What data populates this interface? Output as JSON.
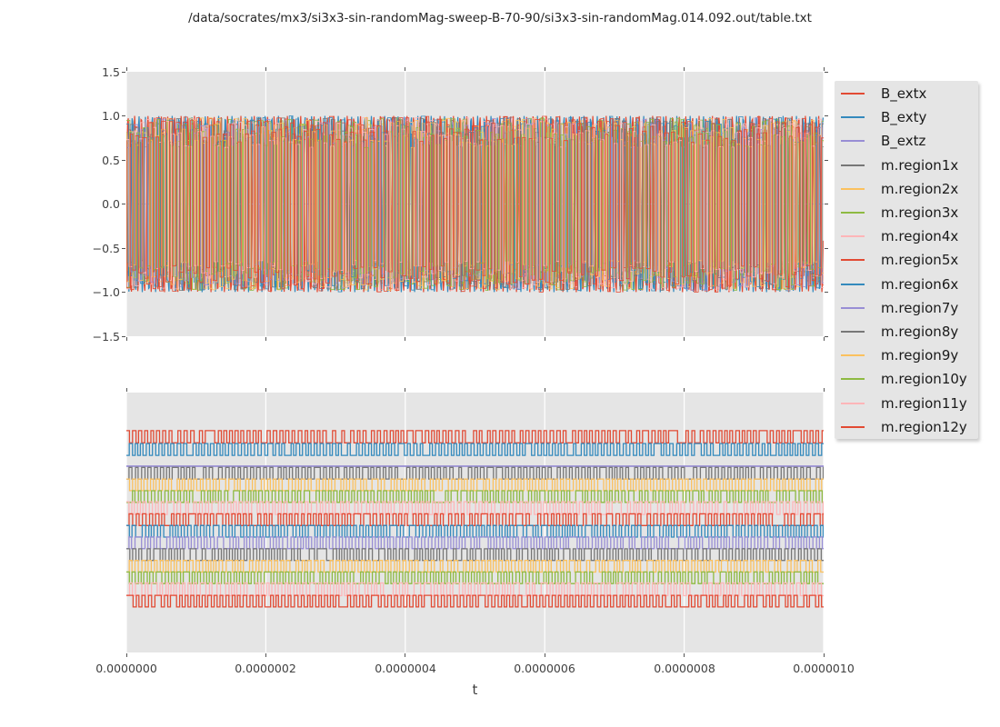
{
  "title": "/data/socrates/mx3/si3x3-sin-randomMag-sweep-B-70-90/si3x3-sin-randomMag.014.092.out/table.txt",
  "xlabel": "t",
  "palette": {
    "red": "#E24A33",
    "blue": "#348ABD",
    "purple": "#988ED5",
    "gray": "#777777",
    "orange": "#FBC15E",
    "green": "#8EBA42",
    "pink": "#FFB5B8",
    "axes_background": "#E5E5E5",
    "grid": "#FFFFFF",
    "tick": "#555555"
  },
  "legend": {
    "items": [
      {
        "label": "B_extx",
        "color": "#E24A33"
      },
      {
        "label": "B_exty",
        "color": "#348ABD"
      },
      {
        "label": "B_extz",
        "color": "#988ED5"
      },
      {
        "label": "m.region1x",
        "color": "#777777"
      },
      {
        "label": "m.region2x",
        "color": "#FBC15E"
      },
      {
        "label": "m.region3x",
        "color": "#8EBA42"
      },
      {
        "label": "m.region4x",
        "color": "#FFB5B8"
      },
      {
        "label": "m.region5x",
        "color": "#E24A33"
      },
      {
        "label": "m.region6x",
        "color": "#348ABD"
      },
      {
        "label": "m.region7y",
        "color": "#988ED5"
      },
      {
        "label": "m.region8y",
        "color": "#777777"
      },
      {
        "label": "m.region9y",
        "color": "#FBC15E"
      },
      {
        "label": "m.region10y",
        "color": "#8EBA42"
      },
      {
        "label": "m.region11y",
        "color": "#FFB5B8"
      },
      {
        "label": "m.region12y",
        "color": "#E24A33"
      }
    ]
  },
  "chart_data": [
    {
      "panel": "top",
      "type": "line",
      "xlim": [
        0,
        1e-06
      ],
      "ylim": [
        -1.5,
        1.5
      ],
      "ytick_values": [
        1.5,
        1.0,
        0.5,
        0.0,
        -0.5,
        -1.0,
        -1.5
      ],
      "ytick_labels": [
        "1.5",
        "1.0",
        "0.5",
        "0.0",
        "−0.5",
        "−1.0",
        "−1.5"
      ],
      "grid": "vertical-white",
      "cycles": 105,
      "seed": 7,
      "series": [
        {
          "name": "B_extx",
          "color": "#E24A33",
          "kind": "sine",
          "amp": 1.0,
          "phase": 0.0
        },
        {
          "name": "B_exty",
          "color": "#348ABD",
          "kind": "sine",
          "amp": 1.0,
          "phase": 2.2
        },
        {
          "name": "B_extz",
          "color": "#988ED5",
          "kind": "flat",
          "value": 0.0
        },
        {
          "name": "m.region1x",
          "color": "#777777",
          "kind": "square",
          "amp_base": 0.64,
          "amp_var": 0.34
        },
        {
          "name": "m.region2x",
          "color": "#FBC15E",
          "kind": "square",
          "amp_base": 0.64,
          "amp_var": 0.34
        },
        {
          "name": "m.region3x",
          "color": "#8EBA42",
          "kind": "square",
          "amp_base": 0.64,
          "amp_var": 0.34
        },
        {
          "name": "m.region4x",
          "color": "#FFB5B8",
          "kind": "square",
          "amp_base": 0.64,
          "amp_var": 0.34
        },
        {
          "name": "m.region5x",
          "color": "#E24A33",
          "kind": "square",
          "amp_base": 0.7,
          "amp_var": 0.3
        },
        {
          "name": "m.region6x",
          "color": "#348ABD",
          "kind": "square",
          "amp_base": 0.7,
          "amp_var": 0.3
        },
        {
          "name": "m.region7y",
          "color": "#988ED5",
          "kind": "square",
          "amp_base": 0.64,
          "amp_var": 0.34
        },
        {
          "name": "m.region8y",
          "color": "#777777",
          "kind": "square",
          "amp_base": 0.64,
          "amp_var": 0.34
        },
        {
          "name": "m.region9y",
          "color": "#FBC15E",
          "kind": "square",
          "amp_base": 0.64,
          "amp_var": 0.34
        },
        {
          "name": "m.region10y",
          "color": "#8EBA42",
          "kind": "square",
          "amp_base": 0.64,
          "amp_var": 0.34
        },
        {
          "name": "m.region11y",
          "color": "#FFB5B8",
          "kind": "square",
          "amp_base": 0.64,
          "amp_var": 0.34
        },
        {
          "name": "m.region12y",
          "color": "#E24A33",
          "kind": "square",
          "amp_base": 0.7,
          "amp_var": 0.3
        }
      ]
    },
    {
      "panel": "bottom",
      "type": "line",
      "xlim": [
        0,
        1e-06
      ],
      "xtick_values": [
        0.0,
        2e-07,
        4e-07,
        6e-07,
        8e-07,
        1e-06
      ],
      "xtick_labels": [
        "0.0000000",
        "0.0000002",
        "0.0000004",
        "0.0000006",
        "0.0000008",
        "0.0000010"
      ],
      "grid": "vertical-white",
      "cycles": 115,
      "seed": 11,
      "skip_prob": 0.1,
      "series": [
        {
          "name": "B_extx",
          "color": "#E24A33",
          "kind": "square",
          "center": 0.17,
          "halfamp": 0.0235
        },
        {
          "name": "B_exty",
          "color": "#348ABD",
          "kind": "square",
          "center": 0.219,
          "halfamp": 0.0227
        },
        {
          "name": "B_extz",
          "color": "#988ED5",
          "kind": "flat",
          "center": 0.2832
        },
        {
          "name": "m.region1x",
          "color": "#777777",
          "kind": "square",
          "center": 0.31,
          "halfamp": 0.0224
        },
        {
          "name": "m.region2x",
          "color": "#FBC15E",
          "kind": "square",
          "center": 0.355,
          "halfamp": 0.0224
        },
        {
          "name": "m.region3x",
          "color": "#8EBA42",
          "kind": "square",
          "center": 0.4,
          "halfamp": 0.0224
        },
        {
          "name": "m.region4x",
          "color": "#FFB5B8",
          "kind": "square",
          "center": 0.4445,
          "halfamp": 0.0245
        },
        {
          "name": "m.region5x",
          "color": "#E24A33",
          "kind": "square",
          "center": 0.489,
          "halfamp": 0.0224
        },
        {
          "name": "m.region6x",
          "color": "#348ABD",
          "kind": "square",
          "center": 0.5335,
          "halfamp": 0.0224
        },
        {
          "name": "m.region7y",
          "color": "#988ED5",
          "kind": "square",
          "center": 0.578,
          "halfamp": 0.0224
        },
        {
          "name": "m.region8y",
          "color": "#777777",
          "kind": "square",
          "center": 0.6234,
          "halfamp": 0.0224
        },
        {
          "name": "m.region9y",
          "color": "#FBC15E",
          "kind": "square",
          "center": 0.668,
          "halfamp": 0.0224
        },
        {
          "name": "m.region10y",
          "color": "#8EBA42",
          "kind": "square",
          "center": 0.7125,
          "halfamp": 0.0224
        },
        {
          "name": "m.region11y",
          "color": "#FFB5B8",
          "kind": "square",
          "center": 0.757,
          "halfamp": 0.0245
        },
        {
          "name": "m.region12y",
          "color": "#E24A33",
          "kind": "square",
          "center": 0.8025,
          "halfamp": 0.0224
        }
      ]
    }
  ]
}
